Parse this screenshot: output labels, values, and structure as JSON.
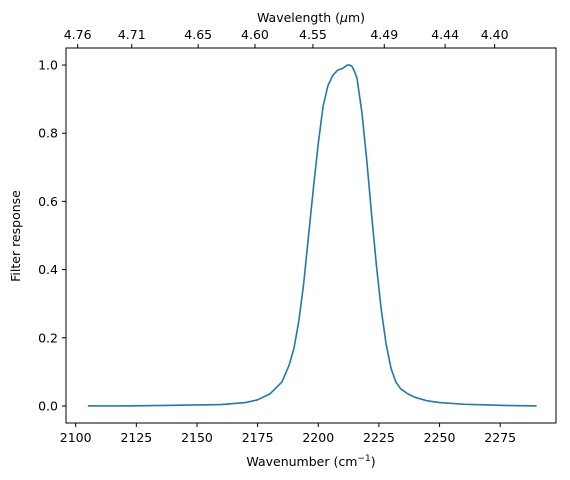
{
  "chart_data": {
    "type": "line",
    "xlabel": "Wavenumber (cm",
    "xlabel_sup": "−1",
    "xlabel_close": ")",
    "ylabel": "Filter response",
    "top_label": "Wavelength (",
    "top_label_mu": "μ",
    "top_label_unit": "m)",
    "xlim": [
      2096,
      2298
    ],
    "ylim": [
      -0.05,
      1.05
    ],
    "grid": false,
    "legend": "none",
    "color": "#1f77b4",
    "x_ticks": [
      2100,
      2125,
      2150,
      2175,
      2200,
      2225,
      2250,
      2275
    ],
    "y_ticks": [
      0.0,
      0.2,
      0.4,
      0.6,
      0.8,
      1.0
    ],
    "y_tick_labels": [
      "0.0",
      "0.2",
      "0.4",
      "0.6",
      "0.8",
      "1.0"
    ],
    "top_ticks": [
      {
        "label": "4.76",
        "wavenumber": 2100.8
      },
      {
        "label": "4.71",
        "wavenumber": 2123.1
      },
      {
        "label": "4.65",
        "wavenumber": 2150.5
      },
      {
        "label": "4.60",
        "wavenumber": 2173.9
      },
      {
        "label": "4.55",
        "wavenumber": 2197.8
      },
      {
        "label": "4.49",
        "wavenumber": 2227.2
      },
      {
        "label": "4.44",
        "wavenumber": 2252.3
      },
      {
        "label": "4.40",
        "wavenumber": 2272.7
      }
    ],
    "series": [
      {
        "x": [
          2105,
          2120,
          2140,
          2160,
          2170,
          2175,
          2180,
          2185,
          2188,
          2190,
          2192,
          2194,
          2196,
          2198,
          2200,
          2202,
          2204,
          2206,
          2208,
          2210,
          2212,
          2213,
          2214,
          2215,
          2216,
          2218,
          2220,
          2222,
          2224,
          2226,
          2228,
          2230,
          2232,
          2234,
          2237,
          2240,
          2245,
          2250,
          2260,
          2270,
          2280,
          2290
        ],
        "y": [
          0.0,
          0.0,
          0.002,
          0.004,
          0.01,
          0.018,
          0.035,
          0.07,
          0.12,
          0.17,
          0.25,
          0.36,
          0.5,
          0.64,
          0.77,
          0.88,
          0.94,
          0.97,
          0.985,
          0.99,
          1.0,
          1.0,
          0.995,
          0.98,
          0.96,
          0.86,
          0.72,
          0.56,
          0.41,
          0.28,
          0.18,
          0.11,
          0.07,
          0.05,
          0.035,
          0.025,
          0.015,
          0.01,
          0.005,
          0.003,
          0.001,
          0.0
        ]
      }
    ]
  }
}
